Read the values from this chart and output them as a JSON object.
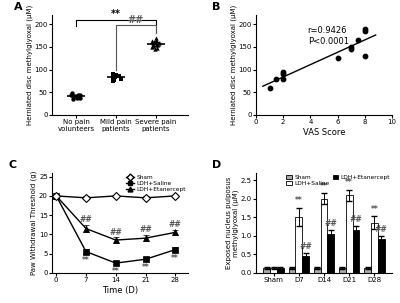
{
  "panel_A": {
    "groups": [
      "No pain\nvolunteers",
      "Mild pain\npatients",
      "Severe pain\npatients"
    ],
    "no_pain": [
      42,
      38,
      45,
      40,
      35,
      42,
      48,
      44,
      38,
      41,
      43
    ],
    "mild_pain": [
      80,
      85,
      75,
      90,
      82,
      78,
      88,
      83,
      79,
      86
    ],
    "severe_pain": [
      155,
      160,
      145,
      165,
      158,
      152,
      170,
      148,
      162,
      155,
      158,
      150
    ],
    "no_pain_mean": 41,
    "mild_pain_mean": 82,
    "severe_pain_mean": 157,
    "ylabel": "Herniated disc methylglyoxal (μM)",
    "ylim": [
      0,
      220
    ],
    "yticks": [
      0,
      50,
      100,
      150,
      200
    ]
  },
  "panel_B": {
    "x": [
      1,
      1.5,
      2,
      2,
      2,
      6,
      7,
      7,
      7.5,
      8,
      8,
      8
    ],
    "y": [
      60,
      80,
      80,
      90,
      95,
      125,
      145,
      150,
      165,
      130,
      185,
      190
    ],
    "ylabel": "Herniated disc methylglyoxal (μM)",
    "xlabel": "VAS Score",
    "xlim": [
      0,
      10
    ],
    "ylim": [
      0,
      220
    ],
    "yticks": [
      0,
      50,
      100,
      150,
      200
    ],
    "xticks": [
      0,
      2,
      4,
      6,
      8,
      10
    ],
    "r_text": "r=0.9426",
    "p_text": "P<0.0001"
  },
  "panel_C": {
    "time": [
      0,
      7,
      14,
      21,
      28
    ],
    "sham": [
      20,
      19.5,
      20,
      19.5,
      20
    ],
    "sham_err": [
      0.3,
      0.4,
      0.3,
      0.4,
      0.3
    ],
    "ldh_saline": [
      20,
      5.5,
      2.5,
      3.5,
      6.0
    ],
    "ldh_saline_err": [
      0.3,
      0.6,
      0.4,
      0.5,
      0.6
    ],
    "ldh_etanercept": [
      20,
      11.5,
      8.5,
      9.0,
      10.5
    ],
    "ldh_etanercept_err": [
      0.3,
      0.9,
      0.7,
      0.8,
      0.7
    ],
    "ylabel": "Paw Withdrawal Threshold (g)",
    "xlabel": "Time (D)",
    "ylim": [
      0,
      26
    ],
    "yticks": [
      0,
      5,
      10,
      15,
      20,
      25
    ]
  },
  "panel_D": {
    "groups": [
      "Sham",
      "D7",
      "D14",
      "D21",
      "D28"
    ],
    "sham_vals": [
      0.12,
      0.12,
      0.12,
      0.12,
      0.12
    ],
    "ldh_saline_vals": [
      0.12,
      1.5,
      2.0,
      2.1,
      1.35
    ],
    "ldh_etanercept_vals": [
      0.12,
      0.45,
      1.05,
      1.15,
      0.9
    ],
    "sham_err": [
      0.03,
      0.03,
      0.03,
      0.03,
      0.03
    ],
    "ldh_saline_err": [
      0.03,
      0.25,
      0.15,
      0.15,
      0.18
    ],
    "ldh_etanercept_err": [
      0.03,
      0.08,
      0.1,
      0.1,
      0.09
    ],
    "ylabel": "Exposed nucleus pulposus\nmethylglyoxal (μM)",
    "ylim": [
      0,
      2.7
    ],
    "yticks": [
      0.0,
      0.5,
      1.0,
      1.5,
      2.0,
      2.5
    ]
  },
  "anno_color_hash": "#555555",
  "anno_color_star": "#555555"
}
